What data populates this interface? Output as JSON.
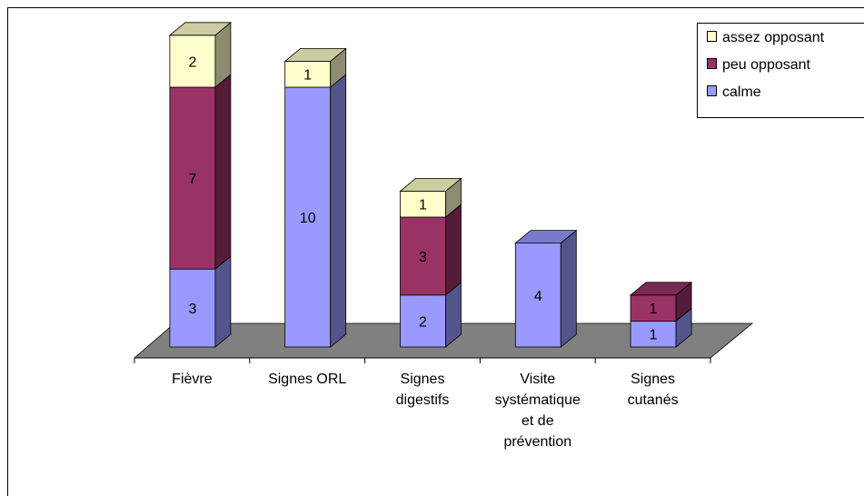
{
  "chart_data": {
    "type": "bar",
    "stacked": true,
    "three_d": true,
    "categories": [
      [
        "Fièvre"
      ],
      [
        "Signes ORL"
      ],
      [
        "Signes",
        "digestifs"
      ],
      [
        "Visite",
        "systématique",
        "et de",
        "prévention"
      ],
      [
        "Signes",
        "cutanés"
      ]
    ],
    "series": [
      {
        "name": "calme",
        "values": [
          3,
          10,
          2,
          4,
          1
        ],
        "color": "#9999ff"
      },
      {
        "name": "peu opposant",
        "values": [
          7,
          0,
          3,
          0,
          1
        ],
        "color": "#993366"
      },
      {
        "name": "assez opposant",
        "values": [
          2,
          1,
          1,
          0,
          0
        ],
        "color": "#ffffcc"
      }
    ],
    "legend_order": [
      "assez opposant",
      "peu opposant",
      "calme"
    ],
    "legend_position": "top-right",
    "grid": false,
    "ylim": [
      0,
      12
    ]
  }
}
